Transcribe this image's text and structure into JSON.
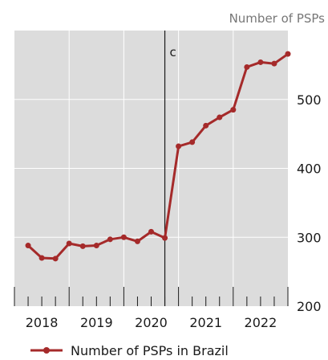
{
  "chart_data": {
    "type": "line",
    "title": "",
    "unit_label": "Number of PSPs",
    "y_axis_position": "right",
    "ylim": [
      200,
      600
    ],
    "yticks": [
      200,
      300,
      400,
      500
    ],
    "x_ticks": [
      {
        "label": "2018",
        "value": 2018.5
      },
      {
        "label": "2019",
        "value": 2019.5
      },
      {
        "label": "2020",
        "value": 2020.5
      },
      {
        "label": "2021",
        "value": 2021.5
      },
      {
        "label": "2022",
        "value": 2022.5
      }
    ],
    "xlim": [
      2018.0,
      2023.0
    ],
    "grid": true,
    "legend_position": "bottom-left",
    "annotation": {
      "label": "c",
      "x": 2020.75
    },
    "series": [
      {
        "name": "Number of PSPs in Brazil",
        "color": "#a52a2a",
        "x": [
          2018.25,
          2018.5,
          2018.75,
          2019.0,
          2019.25,
          2019.5,
          2019.75,
          2020.0,
          2020.25,
          2020.5,
          2020.75,
          2021.0,
          2021.25,
          2021.5,
          2021.75,
          2022.0,
          2022.25,
          2022.5,
          2022.75,
          2023.0
        ],
        "values": [
          288,
          270,
          269,
          291,
          287,
          288,
          297,
          300,
          294,
          308,
          299,
          432,
          438,
          462,
          474,
          485,
          547,
          554,
          552,
          566
        ]
      }
    ]
  }
}
